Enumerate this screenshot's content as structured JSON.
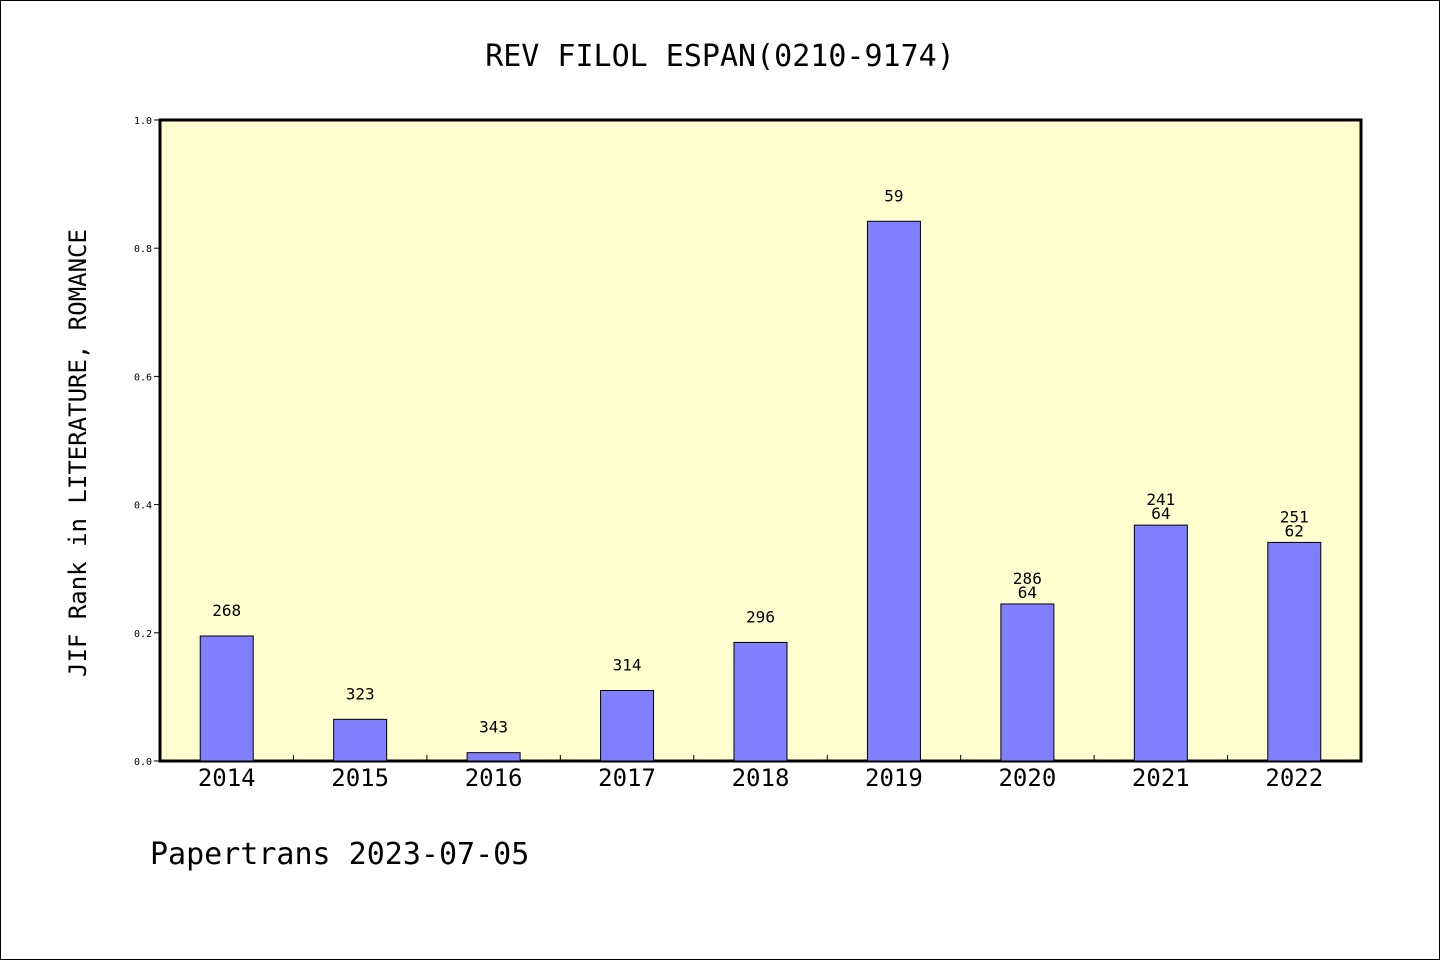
{
  "chart_data": {
    "type": "bar",
    "title": "REV FILOL ESPAN(0210-9174)",
    "xlabel": "",
    "ylabel": "JIF Rank in LITERATURE, ROMANCE",
    "ylim": [
      0,
      1.0
    ],
    "yticks": [
      "0.0",
      "0.2",
      "0.4",
      "0.6",
      "0.8",
      "1.0"
    ],
    "categories": [
      "2014",
      "2015",
      "2016",
      "2017",
      "2018",
      "2019",
      "2020",
      "2021",
      "2022"
    ],
    "values": [
      0.195,
      0.065,
      0.013,
      0.11,
      0.185,
      0.842,
      0.245,
      0.368,
      0.341
    ],
    "bar_labels": [
      [
        "268"
      ],
      [
        "323"
      ],
      [
        "343"
      ],
      [
        "314"
      ],
      [
        "296"
      ],
      [
        "59"
      ],
      [
        "286",
        "64"
      ],
      [
        "241",
        "64"
      ],
      [
        "251",
        "62"
      ]
    ],
    "grid": false,
    "colors": {
      "bar": "#8080ff",
      "plot_bg": "#ffffd0",
      "axis": "#000000"
    }
  },
  "footer": "Papertrans 2023-07-05"
}
